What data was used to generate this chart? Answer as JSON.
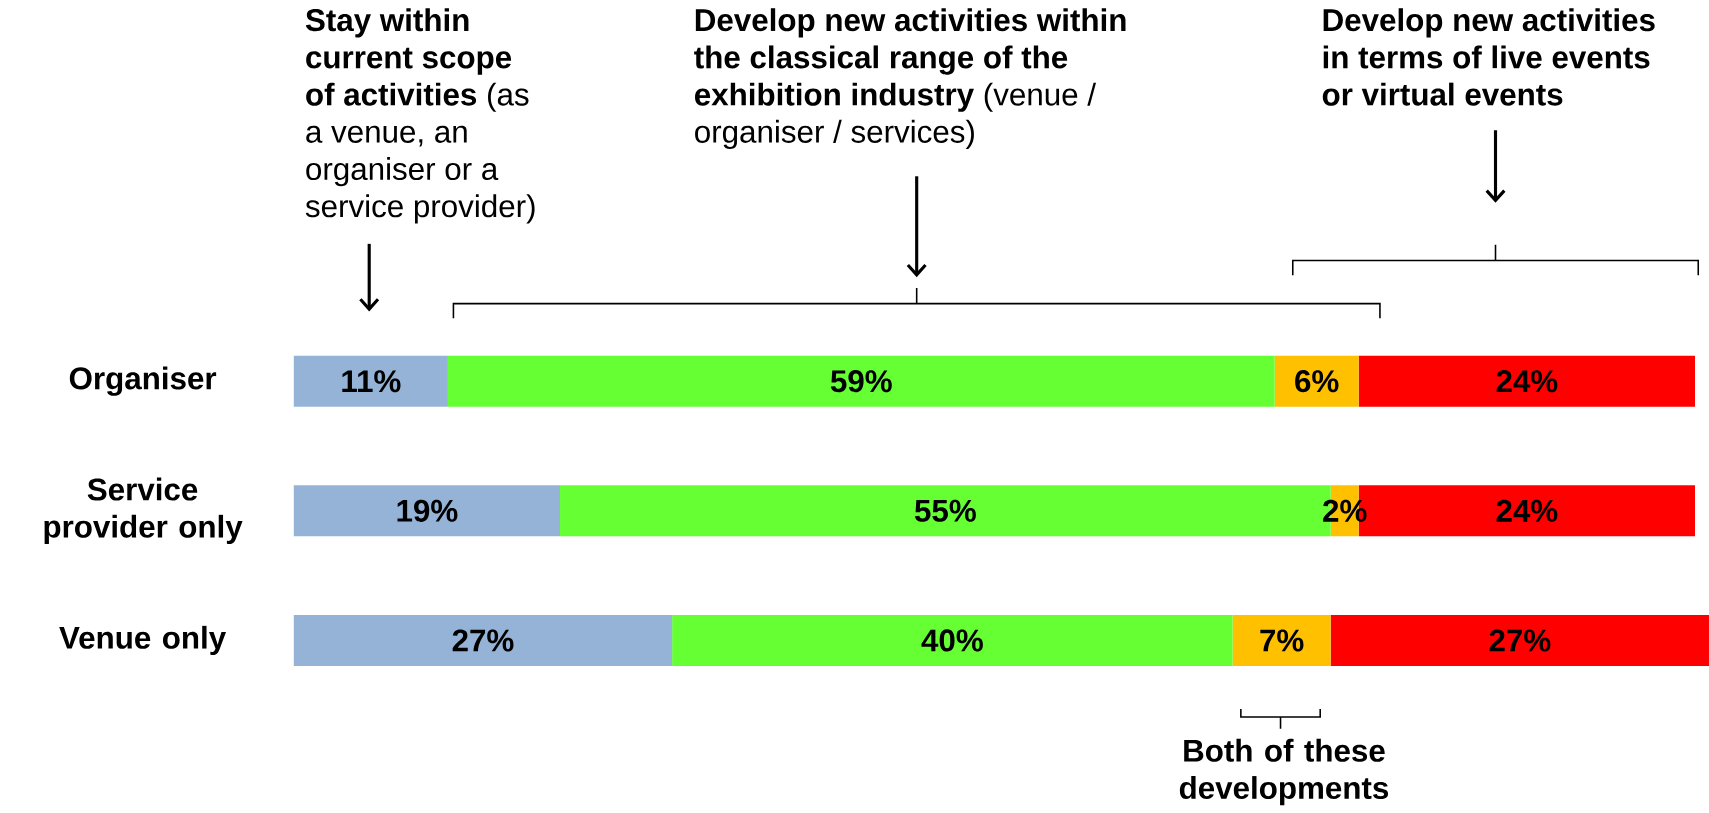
{
  "chart_data": {
    "type": "bar",
    "orientation": "horizontal",
    "stacked": true,
    "categories": [
      "Organiser",
      "Service provider only",
      "Venue only"
    ],
    "series": [
      {
        "color": "#95b3d7",
        "values": [
          11,
          19,
          27
        ],
        "value_labels": [
          "11%",
          "19%",
          "27%"
        ]
      },
      {
        "color": "#66ff33",
        "values": [
          59,
          55,
          40
        ],
        "value_labels": [
          "59%",
          "55%",
          "40%"
        ]
      },
      {
        "color": "#ffc000",
        "values": [
          6,
          2,
          7
        ],
        "value_labels": [
          "6%",
          "2%",
          "7%"
        ]
      },
      {
        "color": "#ff0000",
        "values": [
          24,
          24,
          27
        ],
        "value_labels": [
          "24%",
          "24%",
          "27%"
        ]
      }
    ],
    "annotations": [
      "**Stay within current scope of activities** (as a venue, an organiser or a service provider)",
      "**Develop new activities within the classical range of the exhibition industry** (venue / organiser / services)",
      "**Develop new activities in terms of live events or virtual events**",
      "**Both of these developments**"
    ]
  }
}
